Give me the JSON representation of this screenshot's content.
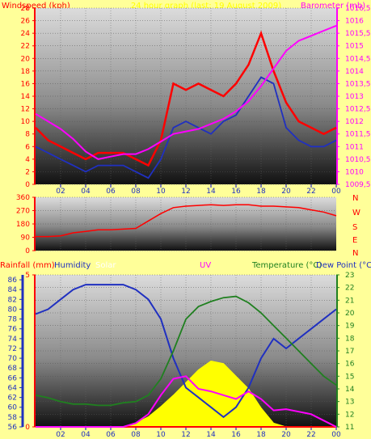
{
  "header": {
    "windspeed_label": "Windspeed (kph)",
    "title": "24 hour graph (last: 19 August 2009)",
    "barometer_label": "Barometer (mb)"
  },
  "colors": {
    "background": "#ffff99",
    "wind": "#ff0000",
    "gust": "#ff0000",
    "avg_wind": "#2030c0",
    "barometer": "#ff00ff",
    "wind_dir": "#ff0000",
    "rain": "#ff0000",
    "humidity": "#2030c0",
    "solar": "#ffff00",
    "uv": "#ff00ff",
    "temperature": "#208020",
    "dewpoint": "#ff0000"
  },
  "compass": [
    "N",
    "W",
    "S",
    "E",
    "N"
  ],
  "bottom_header": {
    "rainfall_label": "Rainfall (mm)",
    "humidity_label": "Humidity",
    "solar_label": "Solar",
    "uv_label": "UV",
    "temperature_label": "Temperature (°C)",
    "dewpoint_label": "Dew Point (°C)"
  },
  "chart_data": [
    {
      "type": "line",
      "title": "24 hour graph (last: 19 August 2009)",
      "xlabel": "",
      "x_ticks": [
        "02",
        "04",
        "06",
        "08",
        "10",
        "12",
        "14",
        "16",
        "18",
        "20",
        "22",
        "00"
      ],
      "left_axis": {
        "label": "Windspeed (kph)",
        "ylim": [
          0,
          28
        ],
        "ticks": [
          "0",
          "2",
          "4",
          "6",
          "8",
          "10",
          "12",
          "14",
          "16",
          "18",
          "20",
          "22",
          "24",
          "26",
          "28"
        ]
      },
      "right_axis": {
        "label": "Barometer (mb)",
        "ylim": [
          1009.5,
          1016.5
        ],
        "ticks": [
          "1009,5",
          "1010",
          "1010,5",
          "1011",
          "1011,5",
          "1012",
          "1012,5",
          "1013",
          "1013,5",
          "1014",
          "1014,5",
          "1015",
          "1015,5",
          "1016",
          "1016,5"
        ]
      },
      "series": [
        {
          "name": "Windspeed (kph)",
          "axis": "left",
          "x": [
            0,
            1,
            2,
            3,
            4,
            5,
            6,
            7,
            8,
            9,
            10,
            11,
            12,
            13,
            14,
            15,
            16,
            17,
            18,
            19,
            20,
            21,
            22,
            23,
            24
          ],
          "values": [
            9,
            7,
            6,
            5,
            4,
            5,
            5,
            5,
            4,
            3,
            7,
            16,
            15,
            16,
            15,
            14,
            16,
            19,
            24,
            18,
            13,
            10,
            9,
            8,
            9
          ]
        },
        {
          "name": "Average windspeed",
          "axis": "left",
          "x": [
            0,
            1,
            2,
            3,
            4,
            5,
            6,
            7,
            8,
            9,
            10,
            11,
            12,
            13,
            14,
            15,
            16,
            17,
            18,
            19,
            20,
            21,
            22,
            23,
            24
          ],
          "values": [
            6,
            5,
            4,
            3,
            2,
            3,
            3,
            3,
            2,
            1,
            4,
            9,
            10,
            9,
            8,
            10,
            11,
            14,
            17,
            16,
            9,
            7,
            6,
            6,
            7
          ]
        },
        {
          "name": "Barometer (mb)",
          "axis": "right",
          "x": [
            0,
            1,
            2,
            3,
            4,
            5,
            6,
            7,
            8,
            9,
            10,
            11,
            12,
            13,
            14,
            15,
            16,
            17,
            18,
            19,
            20,
            21,
            22,
            23,
            24
          ],
          "values": [
            1012.3,
            1012.0,
            1011.7,
            1011.3,
            1010.8,
            1010.5,
            1010.6,
            1010.7,
            1010.7,
            1010.9,
            1011.2,
            1011.5,
            1011.6,
            1011.7,
            1011.9,
            1012.1,
            1012.4,
            1012.8,
            1013.4,
            1014.1,
            1014.8,
            1015.2,
            1015.4,
            1015.6,
            1015.8
          ]
        }
      ]
    },
    {
      "type": "line",
      "x_ticks": [
        "02",
        "04",
        "06",
        "08",
        "10",
        "12",
        "14",
        "16",
        "18",
        "20",
        "22",
        "00"
      ],
      "left_axis": {
        "ylim": [
          0,
          360
        ],
        "ticks": [
          "0",
          "90",
          "180",
          "270",
          "360"
        ]
      },
      "series": [
        {
          "name": "Wind direction",
          "x": [
            0,
            1,
            2,
            3,
            4,
            5,
            6,
            7,
            8,
            9,
            10,
            11,
            12,
            13,
            14,
            15,
            16,
            17,
            18,
            19,
            20,
            21,
            22,
            23,
            24
          ],
          "values": [
            95,
            95,
            100,
            120,
            130,
            140,
            140,
            145,
            150,
            200,
            250,
            290,
            300,
            305,
            310,
            305,
            310,
            310,
            300,
            300,
            295,
            290,
            275,
            260,
            235
          ]
        }
      ]
    },
    {
      "type": "line",
      "x_ticks": [
        "02",
        "04",
        "06",
        "08",
        "10",
        "12",
        "14",
        "16",
        "18",
        "20",
        "22",
        "00"
      ],
      "rain_axis": {
        "label": "Rainfall (mm)",
        "ylim": [
          0,
          5
        ],
        "ticks": [
          "0",
          "5"
        ]
      },
      "humidity_axis": {
        "label": "Humidity",
        "ylim": [
          56,
          87
        ],
        "ticks": [
          "56",
          "58",
          "60",
          "62",
          "64",
          "66",
          "68",
          "70",
          "72",
          "74",
          "76",
          "78",
          "80",
          "82",
          "84",
          "86"
        ]
      },
      "temp_axis": {
        "label": "Temperature (°C)",
        "ylim": [
          11,
          23
        ],
        "ticks": [
          "11",
          "12",
          "13",
          "14",
          "15",
          "16",
          "17",
          "18",
          "19",
          "20",
          "21",
          "22",
          "23"
        ]
      },
      "series": [
        {
          "name": "Humidity",
          "axis": "humidity",
          "x": [
            0,
            1,
            2,
            3,
            4,
            5,
            6,
            7,
            8,
            9,
            10,
            11,
            12,
            13,
            14,
            15,
            16,
            17,
            18,
            19,
            20,
            21,
            22,
            23,
            24
          ],
          "values": [
            79,
            80,
            82,
            84,
            85,
            85,
            85,
            85,
            84,
            82,
            78,
            70,
            64,
            62,
            60,
            58,
            60,
            64,
            70,
            74,
            72,
            74,
            76,
            78,
            80
          ]
        },
        {
          "name": "Temperature (°C)",
          "axis": "temp",
          "x": [
            0,
            1,
            2,
            3,
            4,
            5,
            6,
            7,
            8,
            9,
            10,
            11,
            12,
            13,
            14,
            15,
            16,
            17,
            18,
            19,
            20,
            21,
            22,
            23,
            24
          ],
          "values": [
            13.5,
            13.3,
            13.0,
            12.8,
            12.8,
            12.7,
            12.7,
            12.9,
            13.0,
            13.5,
            14.8,
            17.0,
            19.5,
            20.5,
            20.9,
            21.2,
            21.3,
            20.8,
            20.0,
            19.0,
            18.0,
            17.0,
            16.0,
            15.0,
            14.3
          ]
        },
        {
          "name": "Dew Point (°C)",
          "axis": "temp",
          "x": [
            0,
            1,
            2,
            3,
            4,
            5,
            6,
            7,
            8,
            9,
            10,
            11,
            12,
            13,
            14,
            15,
            16,
            17,
            18,
            19,
            20,
            21,
            22,
            23,
            24
          ],
          "values": [
            11.0,
            11.0,
            11.0,
            11.0,
            11.0,
            11.0,
            11.0,
            11.0,
            11.0,
            11.0,
            11.0,
            11.0,
            11.0,
            11.0,
            11.0,
            11.0,
            11.0,
            11.0,
            11.0,
            11.0,
            11.0,
            11.0,
            11.0,
            11.0,
            11.0
          ]
        },
        {
          "name": "UV",
          "axis": "temp",
          "x": [
            0,
            1,
            2,
            3,
            4,
            5,
            6,
            7,
            8,
            9,
            10,
            11,
            12,
            13,
            14,
            15,
            16,
            17,
            18,
            19,
            20,
            21,
            22,
            23,
            24
          ],
          "values": [
            11,
            11,
            11,
            11,
            11,
            11,
            11,
            11,
            11.3,
            12,
            13.5,
            14.8,
            15.0,
            14.0,
            13.8,
            13.5,
            13.2,
            13.8,
            13.2,
            12.3,
            12.4,
            12.2,
            12.0,
            11.5,
            11
          ]
        },
        {
          "name": "Solar",
          "axis": "temp",
          "x": [
            0,
            1,
            2,
            3,
            4,
            5,
            6,
            7,
            8,
            9,
            10,
            11,
            12,
            13,
            14,
            15,
            16,
            17,
            18,
            19,
            20,
            21,
            22,
            23,
            24
          ],
          "values": [
            11,
            11,
            11,
            11,
            11,
            11,
            11,
            11,
            11.3,
            11.8,
            12.6,
            13.5,
            14.5,
            15.5,
            16.2,
            16.0,
            15.0,
            14.0,
            12.5,
            11.3,
            11,
            11,
            11,
            11,
            11
          ]
        }
      ]
    }
  ]
}
